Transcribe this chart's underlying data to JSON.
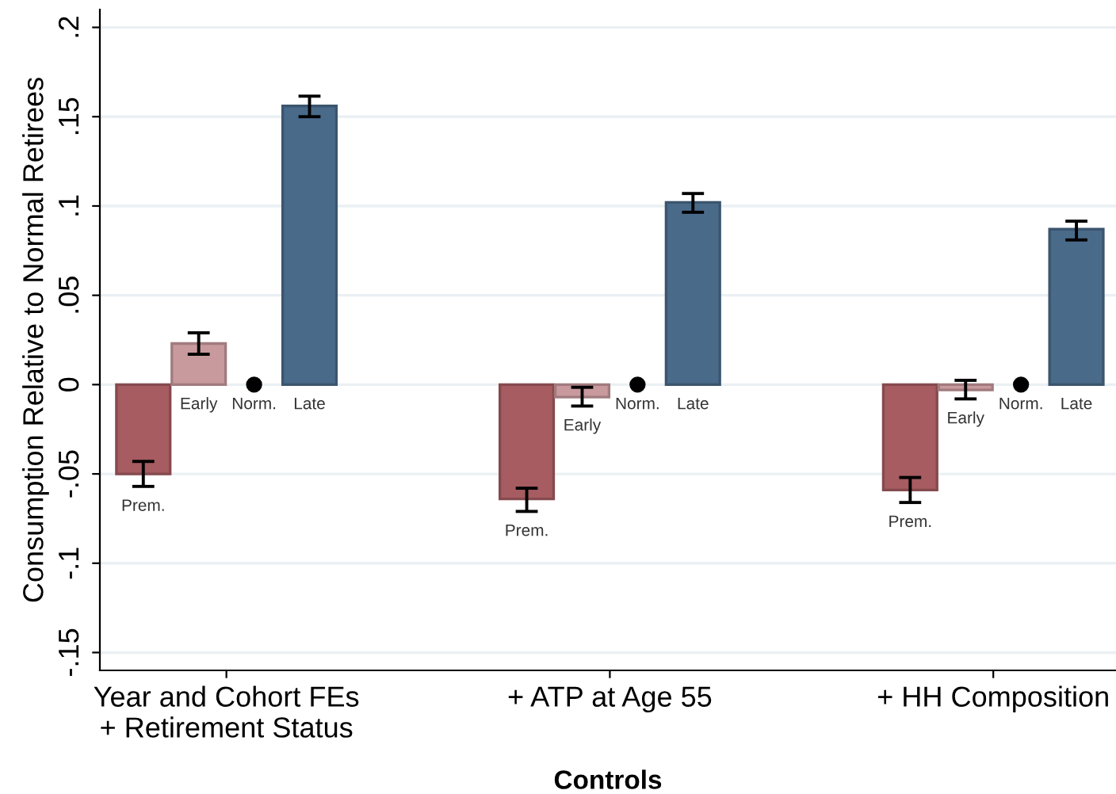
{
  "chart_data": {
    "type": "bar",
    "xlabel": "Controls",
    "ylabel": "Consumption Relative to Normal Retirees",
    "categories": [
      "Year and Cohort FEs\n+ Retirement Status",
      "+ ATP at Age 55",
      "+ HH Composition"
    ],
    "series": [
      {
        "name": "Prem.",
        "color": "#a65c61",
        "values": [
          -0.05,
          -0.064,
          -0.059
        ],
        "errors": [
          [
            -0.057,
            -0.043
          ],
          [
            -0.071,
            -0.058
          ],
          [
            -0.066,
            -0.052
          ]
        ]
      },
      {
        "name": "Early",
        "color": "#c99a9d",
        "values": [
          0.023,
          -0.007,
          -0.003
        ],
        "errors": [
          [
            0.017,
            0.029
          ],
          [
            -0.012,
            -0.0015
          ],
          [
            -0.008,
            0.0024
          ]
        ]
      },
      {
        "name": "Norm.",
        "type": "scatter",
        "color": "#000000",
        "x": [
          "Year and Cohort FEs\n+ Retirement Status",
          "+ ATP at Age 55",
          "+ HH Composition"
        ],
        "values": [
          0,
          0,
          0
        ]
      },
      {
        "name": "Late",
        "color": "#4a6a8a",
        "values": [
          0.156,
          0.102,
          0.087
        ],
        "errors": [
          [
            0.15,
            0.1615
          ],
          [
            0.0965,
            0.107
          ],
          [
            0.081,
            0.0915
          ]
        ]
      }
    ],
    "ylim": [
      -0.16,
      0.21
    ],
    "yticks": [
      {
        "value": -0.15,
        "label": "-.15"
      },
      {
        "value": -0.1,
        "label": "-.1"
      },
      {
        "value": -0.05,
        "label": "-.05"
      },
      0,
      {
        "value": 0.05,
        "label": ".05"
      },
      {
        "value": 0.1,
        "label": ".1"
      },
      {
        "value": 0.15,
        "label": ".15"
      },
      {
        "value": 0.2,
        "label": ".2"
      }
    ],
    "grid": "y",
    "marker": "circle",
    "legend": false
  }
}
